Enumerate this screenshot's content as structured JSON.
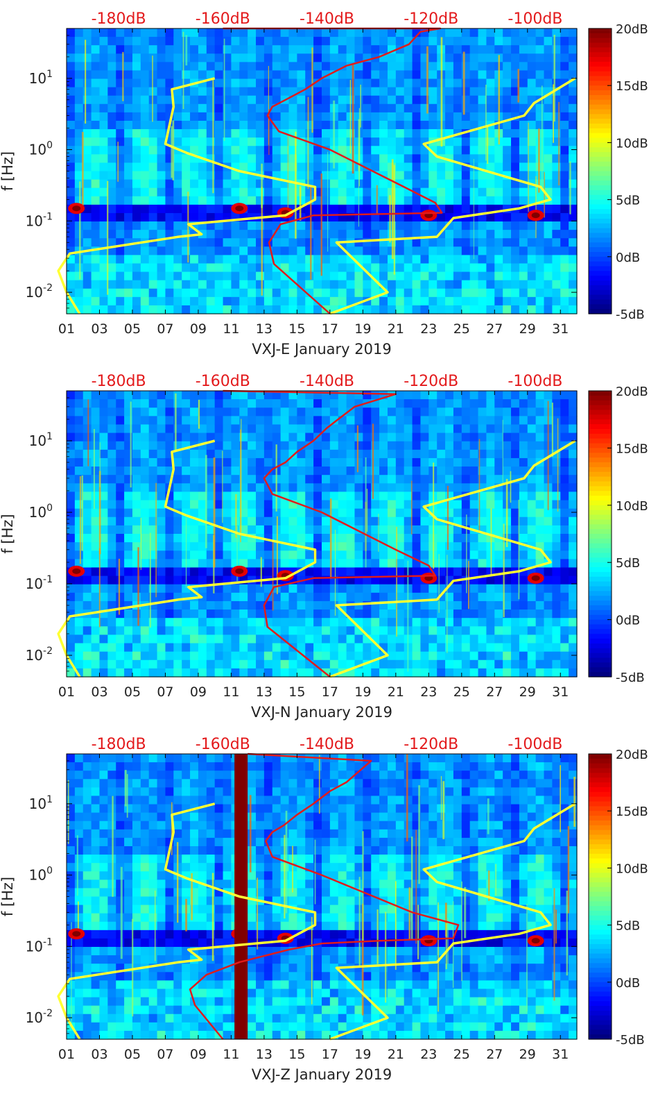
{
  "figure": {
    "colors": {
      "spectrogram_low": "#00008f",
      "spectrogram_high": "#800000",
      "yellow_curve": "#ffff33",
      "red_curve": "#e11b1b",
      "top_axis_text": "#e31a1c"
    }
  },
  "chart_data": [
    {
      "type": "heatmap",
      "panel_id": "E",
      "xlabel": "VXJ-E January 2019",
      "ylabel": "f [Hz]",
      "x_ticks": [
        "01",
        "03",
        "05",
        "07",
        "09",
        "11",
        "13",
        "15",
        "17",
        "19",
        "21",
        "23",
        "25",
        "27",
        "29",
        "31"
      ],
      "x_range": [
        1,
        32
      ],
      "y_scale": "log",
      "y_range": [
        0.005,
        50
      ],
      "y_ticks": [
        {
          "base": "10",
          "exp": "-2",
          "value": 0.01
        },
        {
          "base": "10",
          "exp": "-1",
          "value": 0.1
        },
        {
          "base": "10",
          "exp": "0",
          "value": 1
        },
        {
          "base": "10",
          "exp": "1",
          "value": 10
        }
      ],
      "top_axis": {
        "labels": [
          "-180dB",
          "-160dB",
          "-140dB",
          "-120dB",
          "-100dB"
        ],
        "values": [
          -180,
          -160,
          -140,
          -120,
          -100
        ],
        "range": [
          -190,
          -92
        ]
      },
      "colorbar": {
        "labels": [
          "20dB",
          "15dB",
          "10dB",
          "5dB",
          "0dB",
          "-5dB"
        ],
        "values": [
          20,
          15,
          10,
          5,
          0,
          -5
        ],
        "range": [
          -5,
          20
        ]
      },
      "yellow_curve": {
        "x": [
          10,
          7.4,
          7.5,
          7,
          8.3,
          11.5,
          16.1,
          16.1,
          14.3,
          8.4,
          9.2,
          7.8,
          1.2,
          0.5,
          1.0,
          1.8
        ],
        "y": [
          10,
          7,
          4,
          1.2,
          0.9,
          0.5,
          0.3,
          0.2,
          0.12,
          0.09,
          0.065,
          0.06,
          0.035,
          0.02,
          0.01,
          0.005
        ]
      },
      "yellow_curve_right": {
        "x": [
          17,
          20.5,
          17.4,
          23.5,
          24.5,
          28.5,
          30.4,
          29.8,
          23.5,
          22.7,
          28.8,
          29.4,
          31.9
        ],
        "y": [
          0.005,
          0.01,
          0.05,
          0.06,
          0.11,
          0.15,
          0.2,
          0.3,
          0.8,
          1.2,
          3,
          4.5,
          10
        ]
      },
      "red_curve": {
        "x": [
          17,
          13.6,
          13.3,
          14.0,
          16.0,
          23.8,
          23.4,
          21.5,
          17.0,
          13.9,
          13.2,
          13.5,
          14.3,
          15.5,
          16.5,
          18.0,
          20.0,
          21.8,
          22.5,
          23.7,
          10.5
        ],
        "y": [
          0.005,
          0.025,
          0.05,
          0.09,
          0.12,
          0.13,
          0.18,
          0.3,
          1,
          1.8,
          3,
          4,
          5,
          7,
          10,
          15,
          20,
          30,
          45,
          50,
          50
        ]
      }
    },
    {
      "type": "heatmap",
      "panel_id": "N",
      "xlabel": "VXJ-N January 2019",
      "ylabel": "f [Hz]",
      "x_ticks": [
        "01",
        "03",
        "05",
        "07",
        "09",
        "11",
        "13",
        "15",
        "17",
        "19",
        "21",
        "23",
        "25",
        "27",
        "29",
        "31"
      ],
      "x_range": [
        1,
        32
      ],
      "y_scale": "log",
      "y_range": [
        0.005,
        50
      ],
      "y_ticks": [
        {
          "base": "10",
          "exp": "-2",
          "value": 0.01
        },
        {
          "base": "10",
          "exp": "-1",
          "value": 0.1
        },
        {
          "base": "10",
          "exp": "0",
          "value": 1
        },
        {
          "base": "10",
          "exp": "1",
          "value": 10
        }
      ],
      "top_axis": {
        "labels": [
          "-180dB",
          "-160dB",
          "-140dB",
          "-120dB",
          "-100dB"
        ],
        "values": [
          -180,
          -160,
          -140,
          -120,
          -100
        ],
        "range": [
          -190,
          -92
        ]
      },
      "colorbar": {
        "labels": [
          "20dB",
          "15dB",
          "10dB",
          "5dB",
          "0dB",
          "-5dB"
        ],
        "values": [
          20,
          15,
          10,
          5,
          0,
          -5
        ],
        "range": [
          -5,
          20
        ]
      },
      "yellow_curve": {
        "x": [
          10,
          7.4,
          7.5,
          7,
          8.3,
          11.5,
          16.1,
          16.1,
          14.3,
          8.4,
          9.2,
          7.8,
          1.2,
          0.5,
          1.0,
          1.8
        ],
        "y": [
          10,
          7,
          4,
          1.2,
          0.9,
          0.5,
          0.3,
          0.2,
          0.12,
          0.09,
          0.065,
          0.06,
          0.035,
          0.02,
          0.01,
          0.005
        ]
      },
      "yellow_curve_right": {
        "x": [
          17,
          20.5,
          17.4,
          23.5,
          24.5,
          28.5,
          30.4,
          29.8,
          23.5,
          22.7,
          28.8,
          29.4,
          31.9
        ],
        "y": [
          0.005,
          0.01,
          0.05,
          0.06,
          0.11,
          0.15,
          0.2,
          0.3,
          0.8,
          1.2,
          3,
          4.5,
          10
        ]
      },
      "red_curve": {
        "x": [
          17,
          13.2,
          13.0,
          13.6,
          16.0,
          23.4,
          23.0,
          21.0,
          16.5,
          13.5,
          13.0,
          13.5,
          14.3,
          15.0,
          16.0,
          16.8,
          17.5,
          18.5,
          21.0,
          10.5
        ],
        "y": [
          0.005,
          0.025,
          0.05,
          0.09,
          0.12,
          0.13,
          0.18,
          0.3,
          1,
          1.8,
          3,
          4,
          5,
          7,
          10,
          15,
          20,
          30,
          45,
          50
        ]
      }
    },
    {
      "type": "heatmap",
      "panel_id": "Z",
      "xlabel": "VXJ-Z January 2019",
      "ylabel": "f [Hz]",
      "x_ticks": [
        "01",
        "03",
        "05",
        "07",
        "09",
        "11",
        "13",
        "15",
        "17",
        "19",
        "21",
        "23",
        "25",
        "27",
        "29",
        "31"
      ],
      "x_range": [
        1,
        32
      ],
      "y_scale": "log",
      "y_range": [
        0.005,
        50
      ],
      "y_ticks": [
        {
          "base": "10",
          "exp": "-2",
          "value": 0.01
        },
        {
          "base": "10",
          "exp": "-1",
          "value": 0.1
        },
        {
          "base": "10",
          "exp": "0",
          "value": 1
        },
        {
          "base": "10",
          "exp": "1",
          "value": 10
        }
      ],
      "top_axis": {
        "labels": [
          "-180dB",
          "-160dB",
          "-140dB",
          "-120dB",
          "-100dB"
        ],
        "values": [
          -180,
          -160,
          -140,
          -120,
          -100
        ],
        "range": [
          -190,
          -92
        ]
      },
      "colorbar": {
        "labels": [
          "20dB",
          "15dB",
          "10dB",
          "5dB",
          "0dB",
          "-5dB"
        ],
        "values": [
          20,
          15,
          10,
          5,
          0,
          -5
        ],
        "range": [
          -5,
          20
        ]
      },
      "saturated_band": {
        "x_start": 11.2,
        "x_end": 12.0
      },
      "yellow_curve": {
        "x": [
          10,
          7.4,
          7.5,
          7,
          8.3,
          11.5,
          16.1,
          16.1,
          14.3,
          8.4,
          9.2,
          7.8,
          1.2,
          0.5,
          1.0,
          1.8
        ],
        "y": [
          10,
          7,
          4,
          1.2,
          0.9,
          0.5,
          0.3,
          0.2,
          0.12,
          0.09,
          0.065,
          0.06,
          0.035,
          0.02,
          0.01,
          0.005
        ]
      },
      "yellow_curve_right": {
        "x": [
          17,
          20.5,
          17.4,
          23.5,
          24.5,
          28.5,
          30.4,
          29.8,
          23.5,
          22.7,
          28.8,
          29.4,
          31.9
        ],
        "y": [
          0.005,
          0.01,
          0.05,
          0.06,
          0.11,
          0.15,
          0.2,
          0.3,
          0.8,
          1.2,
          3,
          4.5,
          10
        ]
      },
      "red_curve": {
        "x": [
          10.5,
          8.8,
          8.5,
          9.5,
          11.5,
          14.5,
          16.5,
          20.0,
          24.5,
          24.8,
          22.0,
          16.5,
          13.5,
          13.1,
          13.5,
          14.2,
          15.0,
          16.0,
          17.0,
          18.0,
          19.5,
          12.0
        ],
        "y": [
          0.005,
          0.015,
          0.025,
          0.04,
          0.06,
          0.09,
          0.11,
          0.12,
          0.13,
          0.2,
          0.3,
          1,
          1.8,
          3,
          4,
          5,
          7,
          10,
          15,
          20,
          40,
          50
        ]
      }
    }
  ]
}
